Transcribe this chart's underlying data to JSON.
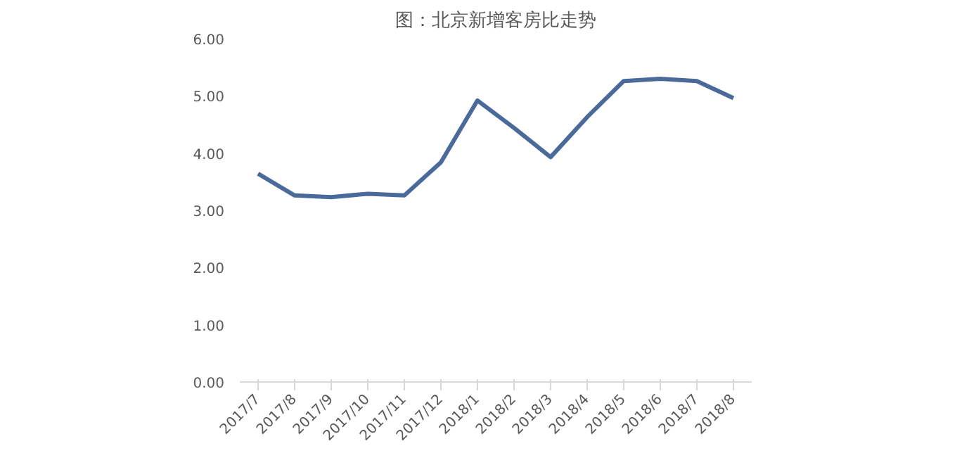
{
  "chart_data": {
    "type": "line",
    "title": "图：北京新增客房比走势",
    "categories": [
      "2017/7",
      "2017/8",
      "2017/9",
      "2017/10",
      "2017/11",
      "2017/12",
      "2018/1",
      "2018/2",
      "2018/3",
      "2018/4",
      "2018/5",
      "2018/6",
      "2018/7",
      "2018/8"
    ],
    "series": [
      {
        "color": "#4a6a9a",
        "values": [
          3.64,
          3.26,
          3.23,
          3.29,
          3.26,
          3.84,
          4.92,
          4.44,
          3.93,
          4.63,
          5.26,
          5.3,
          5.26,
          4.96
        ]
      }
    ],
    "ylim": [
      0,
      6
    ],
    "yticks": [
      {
        "value": 0,
        "label": "0.00"
      },
      {
        "value": 1,
        "label": "1.00"
      },
      {
        "value": 2,
        "label": "2.00"
      },
      {
        "value": 3,
        "label": "3.00"
      },
      {
        "value": 4,
        "label": "4.00"
      },
      {
        "value": 5,
        "label": "5.00"
      },
      {
        "value": 6,
        "label": "6.00"
      }
    ],
    "grid": false,
    "marker": "none",
    "line_style": "solid"
  }
}
